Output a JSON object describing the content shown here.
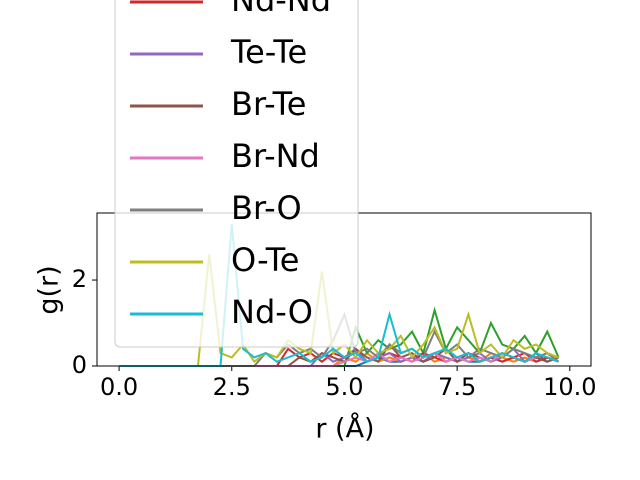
{
  "chart_data": {
    "type": "line",
    "x_label": "r (Å)",
    "y_label": "g(r)",
    "x": [
      0,
      0.25,
      0.5,
      0.75,
      1,
      1.25,
      1.5,
      1.75,
      2,
      2.25,
      2.5,
      2.75,
      3,
      3.25,
      3.5,
      3.75,
      4,
      4.25,
      4.5,
      4.75,
      5,
      5.25,
      5.5,
      5.75,
      6,
      6.25,
      6.5,
      6.75,
      7,
      7.25,
      7.5,
      7.75,
      8,
      8.25,
      8.5,
      8.75,
      9,
      9.25,
      9.5,
      9.75
    ],
    "series": [
      {
        "color": "#1f77b4",
        "values": [
          0,
          0,
          0,
          0,
          0,
          0,
          0,
          0,
          0,
          0,
          0,
          0,
          0,
          0,
          0,
          0,
          0,
          0,
          0,
          0,
          0,
          0,
          0.1,
          0.2,
          0.1,
          0.1,
          0.2,
          0.1,
          0.3,
          0.1,
          0.2,
          0.1,
          0.1,
          0.2,
          0.1,
          0.2,
          0.1,
          0.3,
          0.1,
          0.2
        ]
      },
      {
        "color": "#ff7f0e",
        "values": [
          0,
          0,
          0,
          0,
          0,
          0,
          0,
          0,
          0,
          0,
          0,
          0,
          0,
          0,
          0,
          0,
          0,
          0,
          0,
          0,
          0.2,
          0.1,
          0.3,
          0.1,
          0.2,
          0.1,
          0.2,
          0.3,
          0.1,
          0.2,
          0.1,
          0.2,
          0.1,
          0.3,
          0.2,
          0.1,
          0.2,
          0.1,
          0.2,
          0.1
        ]
      },
      {
        "color": "#2ca02c",
        "values": [
          0,
          0,
          0,
          0,
          0,
          0,
          0,
          0,
          0,
          0,
          0,
          0,
          0,
          0,
          0,
          0,
          0,
          0,
          0,
          0,
          0,
          0.9,
          0.3,
          0.6,
          0.4,
          0.5,
          0.8,
          0.3,
          1.3,
          0.4,
          0.9,
          0.6,
          0.3,
          1.0,
          0.5,
          0.4,
          0.7,
          0.3,
          0.8,
          0.2
        ]
      },
      {
        "name": "Nd-Nd",
        "color": "#d62728",
        "values": [
          0,
          0,
          0,
          0,
          0,
          0,
          0,
          0,
          0,
          0,
          0,
          0,
          0,
          0,
          0,
          0.4,
          0.2,
          0.3,
          0.1,
          0.3,
          0.2,
          0.4,
          0.1,
          0.2,
          0.3,
          0.2,
          0.1,
          0.3,
          0.2,
          0.1,
          0.2,
          0.3,
          0.1,
          0.2,
          0.1,
          0.2,
          0.3,
          0.1,
          0.2,
          0.1
        ]
      },
      {
        "name": "Te-Te",
        "color": "#9467bd",
        "values": [
          0,
          0,
          0,
          0,
          0,
          0,
          0,
          0,
          0,
          0,
          0,
          0,
          0,
          0,
          0,
          0,
          0,
          0,
          0.3,
          0.1,
          0.2,
          0.4,
          0.1,
          0.2,
          0.3,
          0.1,
          0.2,
          0.1,
          0.3,
          0.2,
          0.1,
          0.2,
          0.3,
          0.1,
          0.2,
          0.4,
          0.1,
          0.2,
          0.1,
          0.2
        ]
      },
      {
        "name": "Br-Te",
        "color": "#8c564b",
        "values": [
          0,
          0,
          0,
          0,
          0,
          0,
          0,
          0,
          0,
          0,
          0,
          0,
          0,
          0,
          0,
          0,
          0.2,
          0.1,
          0.3,
          0.2,
          0.1,
          0.4,
          0.2,
          0.1,
          0.5,
          0.2,
          0.3,
          0.1,
          0.2,
          0.4,
          0.1,
          0.3,
          0.2,
          0.1,
          0.3,
          0.2,
          0.1,
          0.2,
          0.1,
          0.2
        ]
      },
      {
        "name": "Br-Nd",
        "color": "#e377c2",
        "values": [
          0,
          0,
          0,
          0,
          0,
          0,
          0,
          0,
          0,
          0,
          0,
          0,
          0,
          0,
          0,
          0,
          0,
          0,
          0,
          0,
          0.1,
          0.2,
          0.1,
          0.3,
          0.1,
          0.2,
          0.1,
          0.2,
          0.3,
          0.1,
          0.2,
          0.1,
          0.2,
          0.1,
          0.3,
          0.2,
          0.1,
          0.2,
          0.3,
          0.1
        ]
      },
      {
        "name": "Br-O",
        "color": "#7f7f7f",
        "values": [
          0,
          0,
          0,
          0,
          0,
          0,
          0,
          0,
          0,
          0,
          0,
          0,
          0,
          0.3,
          0.2,
          0.5,
          0.3,
          0.4,
          0.2,
          0.6,
          1.2,
          0.3,
          0.4,
          0.2,
          0.5,
          0.3,
          0.4,
          0.2,
          0.8,
          0.3,
          0.5,
          0.2,
          0.4,
          0.3,
          0.2,
          0.4,
          0.3,
          0.2,
          0.3,
          0.1
        ]
      },
      {
        "name": "O-Te",
        "color": "#bcbd22",
        "values": [
          0,
          0,
          0,
          0,
          0,
          0,
          0,
          0,
          2.6,
          0.3,
          0.2,
          0.5,
          0.1,
          0.3,
          0.2,
          0.6,
          0.4,
          0.3,
          2.2,
          0.3,
          0.5,
          0.2,
          0.6,
          0.3,
          0.4,
          0.7,
          0.2,
          0.5,
          0.9,
          0.3,
          0.4,
          1.2,
          0.3,
          0.5,
          0.2,
          0.6,
          0.4,
          0.5,
          0.3,
          0.2
        ]
      },
      {
        "name": "Nd-O",
        "color": "#17becf",
        "values": [
          0,
          0,
          0,
          0,
          0,
          0,
          0,
          0,
          0,
          0,
          3.3,
          0.4,
          0.2,
          0.3,
          0.1,
          0.2,
          0.3,
          0.1,
          0.2,
          0.4,
          0.2,
          0.3,
          0.1,
          0.2,
          1.2,
          0.3,
          0.4,
          0.2,
          0.3,
          0.4,
          0.2,
          0.3,
          0.1,
          0.2,
          0.3,
          0.2,
          0.1,
          0.3,
          0.2,
          0.1
        ]
      }
    ],
    "xlim": [
      -0.49,
      10.47
    ],
    "xticks": [
      {
        "value": 0,
        "label": "0.0"
      },
      2.5,
      {
        "value": 5,
        "label": "5.0"
      },
      7.5,
      {
        "value": 10,
        "label": "10.0"
      }
    ],
    "ylim": [
      0,
      3.56
    ],
    "yticks": [
      0,
      2
    ],
    "grid": false,
    "legend": "upper left"
  }
}
